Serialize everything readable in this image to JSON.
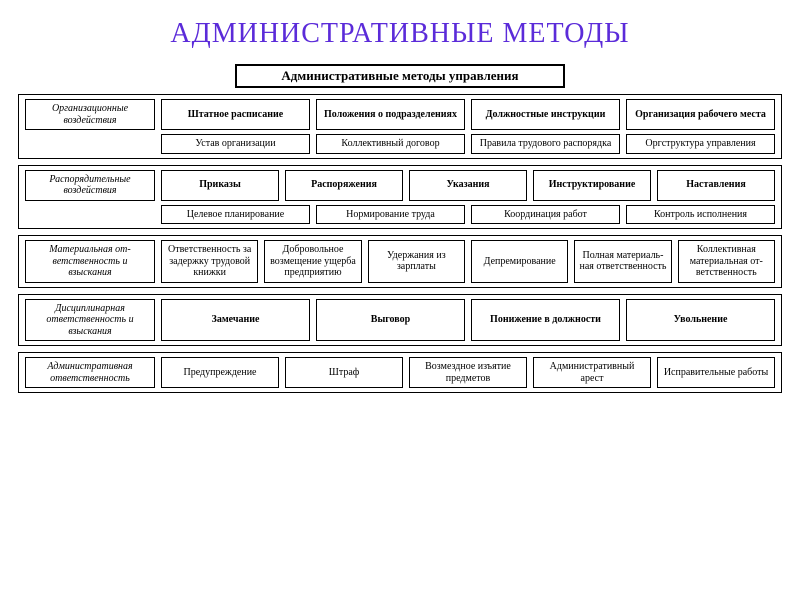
{
  "slide": {
    "title": "АДМИНИСТРАТИВНЫЕ МЕТОДЫ",
    "title_color": "#5b2bd9",
    "title_fontsize": 28,
    "background": "#ffffff"
  },
  "diagram": {
    "type": "tree",
    "root": "Административные методы управления",
    "border_color": "#000000",
    "box_bg": "#ffffff",
    "font_family": "Times New Roman",
    "category_fontsize": 10,
    "item_fontsize": 10,
    "sections": [
      {
        "category": "Организационные воздействия",
        "rows": [
          [
            "Штатное расписание",
            "Положения о подразделениях",
            "Должностные инструкции",
            "Организация рабочего места"
          ],
          [
            "Устав организации",
            "Коллектив­ный договор",
            "Правила тру­дового распо­рядка",
            "Оргструктура управления"
          ]
        ]
      },
      {
        "category": "Распорядитель­ные воздействия",
        "rows": [
          [
            "Приказы",
            "Распоряже­ния",
            "Указания",
            "Инструктиро­вание",
            "Настав­ления"
          ],
          [
            "Целевое планирование",
            "Нормирова­ние труда",
            "Координация работ",
            "Контроль исполнения"
          ]
        ]
      },
      {
        "category": "Материальная от­ветственность и взыскания",
        "rows": [
          [
            "Ответст­венность за задержку трудовой книжки",
            "Доброволь­ное возме­щение ущер­ба предпри­ятию",
            "Удержания из зарплаты",
            "Депреми­рование",
            "Полная материаль­ная ответ­ственность",
            "Коллектив­ная матери­альная от­ветствен­ность"
          ]
        ]
      },
      {
        "category": "Дисциплинарная ответственность и взыскания",
        "rows": [
          [
            "Замечание",
            "Выговор",
            "Понижение в должности",
            "Увольне­ние"
          ]
        ]
      },
      {
        "category": "Администра­тивная ответствен­ность",
        "rows": [
          [
            "Предупре­ждение",
            "Штраф",
            "Возмездное изъятие предметов",
            "Админист­ративный арест",
            "Исправи­тельные работы"
          ]
        ]
      }
    ]
  }
}
